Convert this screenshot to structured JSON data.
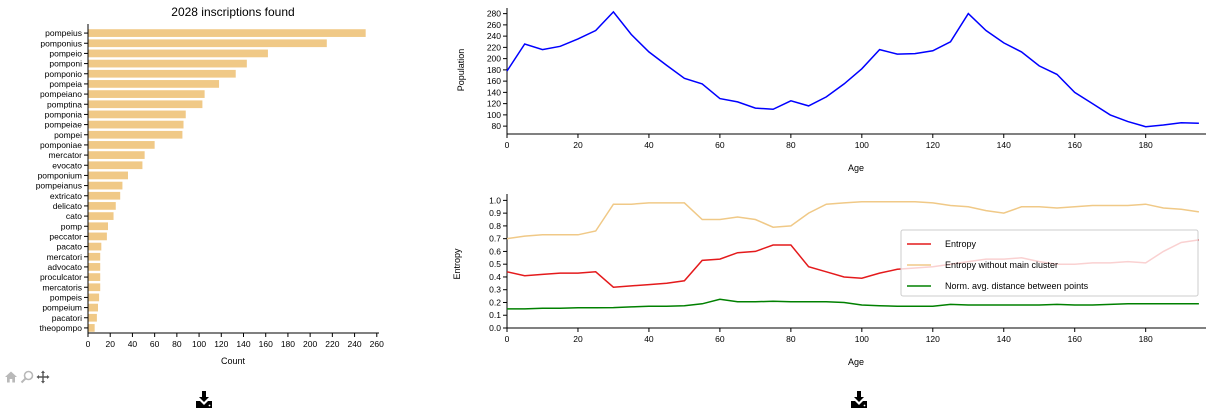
{
  "chart_data": [
    {
      "type": "bar",
      "orientation": "horizontal",
      "title": "2028 inscriptions found",
      "xlabel": "Count",
      "ylabel": "",
      "xlim": [
        0,
        262
      ],
      "xticks": [
        0,
        20,
        40,
        60,
        80,
        100,
        120,
        140,
        160,
        180,
        200,
        220,
        240,
        260
      ],
      "bar_color": "#f0c987",
      "categories": [
        "pompeius",
        "pomponius",
        "pompeio",
        "pomponi",
        "pomponio",
        "pompeia",
        "pompeiano",
        "pomptina",
        "pomponia",
        "pompeiae",
        "pompei",
        "pomponiae",
        "mercator",
        "evocato",
        "pomponium",
        "pompeianus",
        "extricato",
        "delicato",
        "cato",
        "pomp",
        "peccator",
        "pacato",
        "mercatori",
        "advocato",
        "proculcator",
        "mercatoris",
        "pompeis",
        "pompeium",
        "pacatori",
        "theopompo"
      ],
      "values": [
        250,
        215,
        162,
        143,
        133,
        118,
        105,
        103,
        88,
        86,
        85,
        60,
        51,
        49,
        36,
        31,
        29,
        25,
        23,
        18,
        17,
        12,
        11,
        11,
        11,
        11,
        10,
        9,
        8,
        6
      ]
    },
    {
      "type": "line",
      "xlabel": "Age",
      "ylabel": "Population",
      "xlim": [
        0,
        197
      ],
      "ylim": [
        66,
        290
      ],
      "xticks": [
        0,
        20,
        40,
        60,
        80,
        100,
        120,
        140,
        160,
        180
      ],
      "yticks": [
        80,
        100,
        120,
        140,
        160,
        180,
        200,
        220,
        240,
        260,
        280
      ],
      "series": [
        {
          "color": "#0000ff",
          "x": [
            0,
            5,
            10,
            15,
            20,
            25,
            30,
            35,
            40,
            45,
            50,
            55,
            60,
            65,
            70,
            75,
            80,
            85,
            90,
            95,
            100,
            105,
            110,
            115,
            120,
            125,
            130,
            135,
            140,
            145,
            150,
            155,
            160,
            165,
            170,
            175,
            180,
            185,
            190,
            195
          ],
          "y": [
            178,
            226,
            216,
            222,
            235,
            250,
            283,
            243,
            212,
            188,
            165,
            155,
            129,
            123,
            112,
            110,
            125,
            116,
            132,
            155,
            182,
            216,
            208,
            209,
            214,
            230,
            280,
            250,
            228,
            212,
            187,
            172,
            140,
            120,
            100,
            88,
            79,
            82,
            86,
            85
          ]
        }
      ]
    },
    {
      "type": "line",
      "xlabel": "Age",
      "ylabel": "Entropy",
      "xlim": [
        0,
        197
      ],
      "ylim": [
        0,
        1.05
      ],
      "xticks": [
        0,
        20,
        40,
        60,
        80,
        100,
        120,
        140,
        160,
        180
      ],
      "yticks": [
        0.0,
        0.1,
        0.2,
        0.3,
        0.4,
        0.5,
        0.6,
        0.7,
        0.8,
        0.9,
        1.0
      ],
      "legend_position": "right",
      "series": [
        {
          "name": "Entropy",
          "color": "#e41a1c",
          "x": [
            0,
            5,
            10,
            15,
            20,
            25,
            30,
            35,
            40,
            45,
            50,
            55,
            60,
            65,
            70,
            75,
            80,
            85,
            90,
            95,
            100,
            105,
            110,
            115,
            120,
            125,
            130,
            135,
            140,
            145,
            150,
            155,
            160,
            165,
            170,
            175,
            180,
            185,
            190,
            195
          ],
          "y": [
            0.44,
            0.41,
            0.42,
            0.43,
            0.43,
            0.44,
            0.32,
            0.33,
            0.34,
            0.35,
            0.37,
            0.53,
            0.54,
            0.59,
            0.6,
            0.65,
            0.65,
            0.48,
            0.44,
            0.4,
            0.39,
            0.43,
            0.46,
            0.47,
            0.48,
            0.5,
            0.52,
            0.54,
            0.54,
            0.55,
            0.52,
            0.5,
            0.5,
            0.51,
            0.51,
            0.52,
            0.51,
            0.6,
            0.67,
            0.69
          ]
        },
        {
          "name": "Entropy without main cluster",
          "color": "#f0c987",
          "x": [
            0,
            5,
            10,
            15,
            20,
            25,
            30,
            35,
            40,
            45,
            50,
            55,
            60,
            65,
            70,
            75,
            80,
            85,
            90,
            95,
            100,
            105,
            110,
            115,
            120,
            125,
            130,
            135,
            140,
            145,
            150,
            155,
            160,
            165,
            170,
            175,
            180,
            185,
            190,
            195
          ],
          "y": [
            0.7,
            0.72,
            0.73,
            0.73,
            0.73,
            0.76,
            0.97,
            0.97,
            0.98,
            0.98,
            0.98,
            0.85,
            0.85,
            0.87,
            0.85,
            0.79,
            0.8,
            0.9,
            0.97,
            0.98,
            0.99,
            0.99,
            0.99,
            0.99,
            0.98,
            0.96,
            0.95,
            0.92,
            0.9,
            0.95,
            0.95,
            0.94,
            0.95,
            0.96,
            0.96,
            0.96,
            0.97,
            0.94,
            0.93,
            0.91
          ]
        },
        {
          "name": "Norm. avg. distance between points",
          "color": "#008000",
          "x": [
            0,
            5,
            10,
            15,
            20,
            25,
            30,
            35,
            40,
            45,
            50,
            55,
            60,
            65,
            70,
            75,
            80,
            85,
            90,
            95,
            100,
            105,
            110,
            115,
            120,
            125,
            130,
            135,
            140,
            145,
            150,
            155,
            160,
            165,
            170,
            175,
            180,
            185,
            190,
            195
          ],
          "y": [
            0.15,
            0.15,
            0.155,
            0.155,
            0.158,
            0.158,
            0.16,
            0.165,
            0.17,
            0.17,
            0.175,
            0.19,
            0.225,
            0.205,
            0.205,
            0.21,
            0.205,
            0.205,
            0.205,
            0.2,
            0.18,
            0.175,
            0.17,
            0.17,
            0.17,
            0.185,
            0.18,
            0.18,
            0.18,
            0.18,
            0.18,
            0.185,
            0.18,
            0.18,
            0.185,
            0.19,
            0.19,
            0.19,
            0.19,
            0.19
          ]
        }
      ]
    }
  ],
  "toolbar": [
    {
      "name": "home-icon",
      "glyph": "⌂"
    },
    {
      "name": "zoom-icon",
      "glyph": "⚲"
    },
    {
      "name": "pan-icon",
      "glyph": "✥"
    }
  ],
  "downloads": [
    {
      "name": "download-icon"
    },
    {
      "name": "download-icon"
    }
  ]
}
